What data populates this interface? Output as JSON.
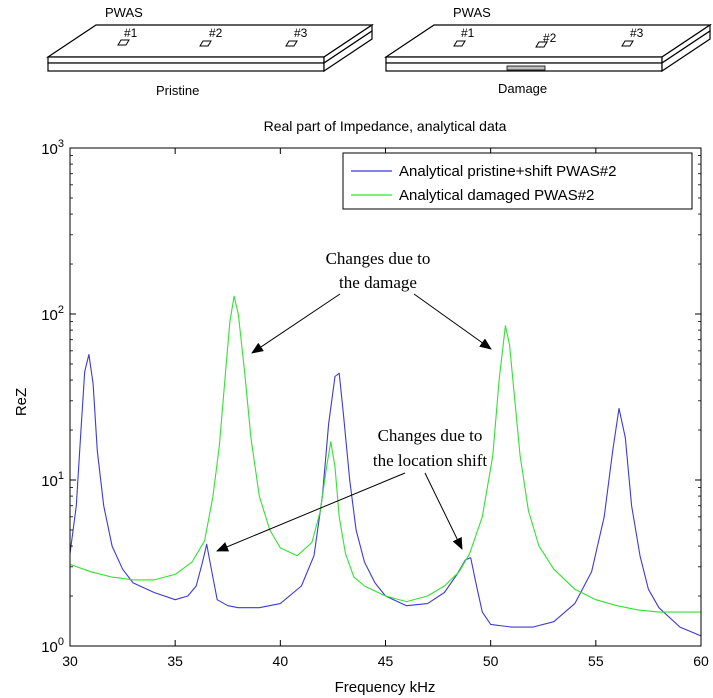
{
  "diagrams": [
    {
      "label": "PWAS",
      "caption": "Pristine",
      "sensors": [
        "#1",
        "#2",
        "#3"
      ]
    },
    {
      "label": "PWAS",
      "caption": "Damage",
      "sensors": [
        "#1",
        "#2",
        "#3"
      ]
    }
  ],
  "annotations": {
    "damage": [
      "Changes due to",
      "the damage"
    ],
    "shift": [
      "Changes due to",
      "the location shift"
    ]
  },
  "chart_data": {
    "type": "line",
    "title": "Real part of Impedance, analytical data",
    "xlabel": "Frequency kHz",
    "ylabel": "ReZ",
    "xlim": [
      30,
      60
    ],
    "ylim": [
      1,
      1000
    ],
    "yscale": "log",
    "xticks": [
      30,
      35,
      40,
      45,
      50,
      55,
      60
    ],
    "yticks": [
      {
        "value": 1,
        "base": "10",
        "exp": "0"
      },
      {
        "value": 10,
        "base": "10",
        "exp": "1"
      },
      {
        "value": 100,
        "base": "10",
        "exp": "2"
      },
      {
        "value": 1000,
        "base": "10",
        "exp": "3"
      }
    ],
    "grid": false,
    "legend_position": "top-right",
    "series": [
      {
        "name": "Analytical pristine+shift PWAS#2",
        "color": "#3b3bd6",
        "x": [
          30,
          30.3,
          30.5,
          30.7,
          30.9,
          31.1,
          31.3,
          31.6,
          32,
          32.5,
          33,
          34,
          35,
          35.6,
          36,
          36.3,
          36.5,
          36.7,
          37,
          37.5,
          38,
          39,
          40,
          41,
          41.6,
          42,
          42.3,
          42.6,
          42.8,
          43,
          43.3,
          43.6,
          44,
          44.5,
          45,
          46,
          47,
          47.8,
          48.4,
          48.8,
          49.05,
          49.3,
          49.6,
          50,
          51,
          52,
          53,
          54,
          54.8,
          55.4,
          55.8,
          56.1,
          56.4,
          56.7,
          57.1,
          57.5,
          58,
          59,
          60
        ],
        "y": [
          3.6,
          7,
          18,
          45,
          57,
          38,
          15,
          7,
          4,
          2.9,
          2.4,
          2.1,
          1.9,
          2.0,
          2.3,
          3.2,
          4.1,
          3.0,
          1.9,
          1.75,
          1.7,
          1.7,
          1.8,
          2.3,
          3.5,
          8,
          22,
          42,
          44,
          25,
          10,
          5,
          3.2,
          2.4,
          2.0,
          1.75,
          1.8,
          2.1,
          2.7,
          3.3,
          3.4,
          2.4,
          1.6,
          1.35,
          1.3,
          1.3,
          1.4,
          1.8,
          2.8,
          6,
          15,
          27,
          18,
          7,
          3.5,
          2.2,
          1.7,
          1.3,
          1.15
        ]
      },
      {
        "name": "Analytical damaged PWAS#2",
        "color": "#33e033",
        "x": [
          30,
          31,
          32,
          33,
          34,
          35,
          35.8,
          36.4,
          36.8,
          37.1,
          37.4,
          37.6,
          37.8,
          38.0,
          38.3,
          38.6,
          39,
          39.5,
          40,
          40.8,
          41.5,
          41.9,
          42.2,
          42.4,
          42.6,
          42.8,
          43.1,
          43.5,
          44,
          45,
          46,
          47,
          47.8,
          48.5,
          49,
          49.6,
          50.1,
          50.4,
          50.7,
          50.9,
          51.1,
          51.4,
          51.8,
          52.3,
          53,
          54,
          55,
          56,
          57,
          58,
          59,
          60
        ],
        "y": [
          3.1,
          2.8,
          2.6,
          2.5,
          2.5,
          2.7,
          3.2,
          4.3,
          8,
          16,
          45,
          90,
          128,
          100,
          45,
          18,
          8,
          5,
          3.9,
          3.5,
          4.2,
          6.5,
          12,
          17,
          12,
          6,
          3.6,
          2.6,
          2.3,
          2.0,
          1.85,
          2.0,
          2.3,
          2.8,
          3.6,
          6,
          14,
          40,
          85,
          65,
          35,
          14,
          6.5,
          4,
          2.9,
          2.2,
          1.9,
          1.75,
          1.65,
          1.6,
          1.6,
          1.6
        ]
      }
    ]
  }
}
